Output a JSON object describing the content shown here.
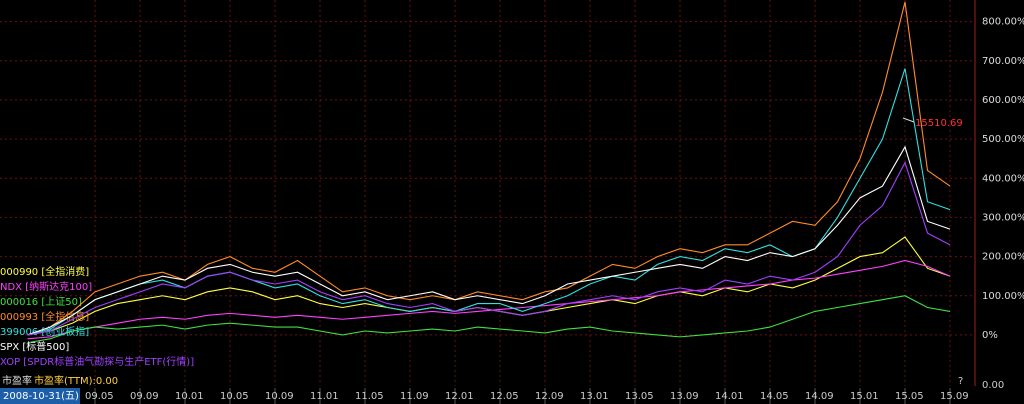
{
  "chart_data": {
    "type": "line",
    "categories": [
      null,
      null,
      null,
      "09.05",
      null,
      "09.09",
      null,
      "10.01",
      null,
      "10.05",
      null,
      "10.09",
      null,
      "11.01",
      null,
      "11.05",
      null,
      "11.09",
      null,
      "12.01",
      null,
      "12.05",
      null,
      "12.09",
      null,
      "13.01",
      null,
      "13.05",
      null,
      "13.09",
      null,
      "14.01",
      null,
      "14.05",
      null,
      "14.09",
      null,
      "15.01",
      null,
      "15.05",
      null,
      "15.09"
    ],
    "series": [
      {
        "name": "000990 [全指消费]",
        "color": "#ffff40",
        "values": [
          0,
          10,
          30,
          60,
          80,
          90,
          100,
          90,
          110,
          120,
          110,
          90,
          100,
          80,
          70,
          80,
          70,
          60,
          70,
          60,
          70,
          60,
          50,
          60,
          70,
          80,
          90,
          80,
          100,
          110,
          100,
          120,
          110,
          130,
          120,
          140,
          170,
          200,
          210,
          250,
          170,
          150
        ]
      },
      {
        "name": "NDX [纳斯达克100]",
        "color": "#ff40ff",
        "values": [
          -10,
          -5,
          10,
          20,
          30,
          40,
          45,
          40,
          50,
          55,
          50,
          45,
          50,
          45,
          40,
          45,
          50,
          55,
          60,
          55,
          60,
          65,
          70,
          75,
          80,
          85,
          90,
          95,
          100,
          110,
          115,
          120,
          125,
          130,
          140,
          145,
          155,
          165,
          175,
          190,
          175,
          150
        ]
      },
      {
        "name": "000016 [上证50]",
        "color": "#40e040",
        "values": [
          -20,
          -10,
          10,
          20,
          15,
          20,
          25,
          15,
          25,
          30,
          25,
          20,
          20,
          10,
          0,
          10,
          5,
          10,
          15,
          10,
          20,
          15,
          10,
          5,
          15,
          20,
          10,
          5,
          0,
          -5,
          0,
          5,
          10,
          20,
          40,
          60,
          70,
          80,
          90,
          100,
          70,
          60
        ]
      },
      {
        "name": "000993 [全指信息]",
        "color": "#ff8c28",
        "values": [
          0,
          20,
          60,
          110,
          130,
          150,
          160,
          140,
          180,
          200,
          170,
          160,
          190,
          150,
          110,
          120,
          100,
          90,
          100,
          90,
          110,
          100,
          90,
          110,
          120,
          150,
          180,
          170,
          200,
          220,
          210,
          230,
          230,
          260,
          290,
          280,
          340,
          450,
          620,
          850,
          420,
          380
        ]
      },
      {
        "name": "399006 [创业板指]",
        "color": "#30e0e0",
        "values": [
          0,
          15,
          50,
          90,
          110,
          130,
          140,
          120,
          150,
          160,
          140,
          120,
          130,
          100,
          80,
          90,
          70,
          60,
          70,
          60,
          80,
          80,
          60,
          80,
          100,
          130,
          150,
          140,
          180,
          200,
          190,
          220,
          210,
          230,
          200,
          220,
          300,
          400,
          500,
          680,
          340,
          320
        ]
      },
      {
        "name": "SPX [标普500]",
        "color": "#ffffff",
        "values": [
          0,
          20,
          50,
          90,
          110,
          130,
          150,
          140,
          170,
          180,
          160,
          150,
          160,
          130,
          100,
          110,
          90,
          100,
          110,
          90,
          100,
          90,
          80,
          100,
          130,
          140,
          150,
          160,
          170,
          180,
          170,
          200,
          190,
          210,
          200,
          220,
          280,
          350,
          380,
          480,
          290,
          270
        ]
      },
      {
        "name": "XOP [SPDR标普油气勘探与生产ETF(行情)]",
        "color": "#a040ff",
        "values": [
          0,
          10,
          40,
          70,
          90,
          110,
          130,
          120,
          150,
          160,
          140,
          130,
          140,
          110,
          90,
          100,
          80,
          70,
          80,
          60,
          70,
          60,
          50,
          60,
          80,
          90,
          100,
          90,
          110,
          120,
          110,
          140,
          130,
          150,
          140,
          160,
          200,
          280,
          330,
          440,
          260,
          230
        ]
      }
    ],
    "ylim": [
      -110,
      850
    ],
    "yticks": [
      {
        "value": 0,
        "label": "0%"
      },
      {
        "value": 100,
        "label": "100.00%"
      },
      {
        "value": 200,
        "label": "200.00%"
      },
      {
        "value": 300,
        "label": "300.00%"
      },
      {
        "value": 400,
        "label": "400.00%"
      },
      {
        "value": 500,
        "label": "500.00%"
      },
      {
        "value": 600,
        "label": "600.00%"
      },
      {
        "value": 700,
        "label": "700.00%"
      },
      {
        "value": 800,
        "label": "800.00%"
      }
    ],
    "grid": true,
    "annotation": "15510.69",
    "footer": {
      "date": "2008-10-31(五)",
      "indicator": "市盈率",
      "indicator_value": "市盈率(TTM):0.00",
      "help": "?",
      "right_value": "0.00"
    }
  }
}
